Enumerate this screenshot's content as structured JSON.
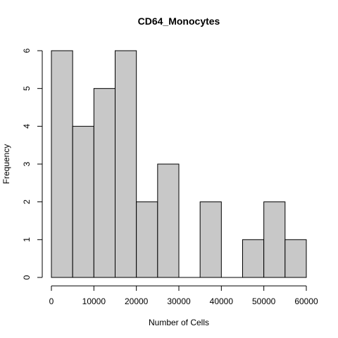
{
  "chart_data": {
    "type": "bar",
    "title": "CD64_Monocytes",
    "xlabel": "Number of Cells",
    "ylabel": "Frequency",
    "bins": [
      {
        "start": 0,
        "end": 5000,
        "count": 6
      },
      {
        "start": 5000,
        "end": 10000,
        "count": 4
      },
      {
        "start": 10000,
        "end": 15000,
        "count": 5
      },
      {
        "start": 15000,
        "end": 20000,
        "count": 6
      },
      {
        "start": 20000,
        "end": 25000,
        "count": 2
      },
      {
        "start": 25000,
        "end": 30000,
        "count": 3
      },
      {
        "start": 30000,
        "end": 35000,
        "count": 0
      },
      {
        "start": 35000,
        "end": 40000,
        "count": 2
      },
      {
        "start": 40000,
        "end": 45000,
        "count": 0
      },
      {
        "start": 45000,
        "end": 50000,
        "count": 1
      },
      {
        "start": 50000,
        "end": 55000,
        "count": 2
      },
      {
        "start": 55000,
        "end": 60000,
        "count": 1
      }
    ],
    "xlim": [
      0,
      60000
    ],
    "ylim": [
      0,
      6
    ],
    "xticks": [
      0,
      10000,
      20000,
      30000,
      40000,
      50000,
      60000
    ],
    "xtick_labels": [
      "0",
      "10000",
      "20000",
      "30000",
      "40000",
      "50000",
      "60000"
    ],
    "yticks": [
      0,
      1,
      2,
      3,
      4,
      5,
      6
    ],
    "ytick_labels": [
      "0",
      "1",
      "2",
      "3",
      "4",
      "5",
      "6"
    ],
    "grid": false,
    "bar_color": "#c8c8c8",
    "edge_color": "#000000"
  }
}
